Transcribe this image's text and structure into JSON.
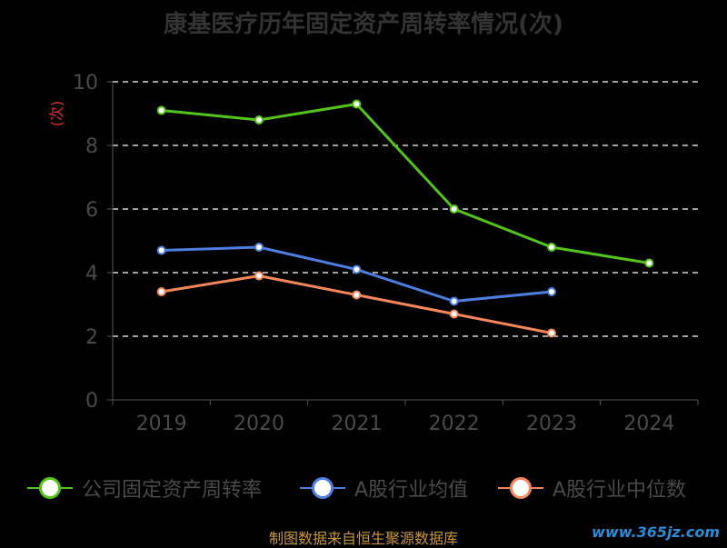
{
  "title": "康基医疗历年固定资产周转率情况(次)",
  "source": "制图数据来自恒生聚源数据库",
  "watermark": "www.365jz.com",
  "chart_data": {
    "type": "line",
    "title": "康基医疗历年固定资产周转率情况(次)",
    "ylabel": "(次)",
    "xlabel": "",
    "categories": [
      "2019",
      "2020",
      "2021",
      "2022",
      "2023",
      "2024"
    ],
    "ylim": [
      0,
      10
    ],
    "yticks": [
      0,
      2,
      4,
      6,
      8,
      10
    ],
    "grid": true,
    "legend_position": "bottom",
    "series": [
      {
        "name": "公司固定资产周转率",
        "color": "#52c41a",
        "values": [
          9.1,
          8.8,
          9.3,
          6.0,
          4.8,
          4.3
        ]
      },
      {
        "name": "A股行业均值",
        "color": "#4e7fe0",
        "values": [
          4.7,
          4.8,
          4.1,
          3.1,
          3.4,
          null
        ]
      },
      {
        "name": "A股行业中位数",
        "color": "#f7875a",
        "values": [
          3.4,
          3.9,
          3.3,
          2.7,
          2.1,
          null
        ]
      }
    ]
  }
}
